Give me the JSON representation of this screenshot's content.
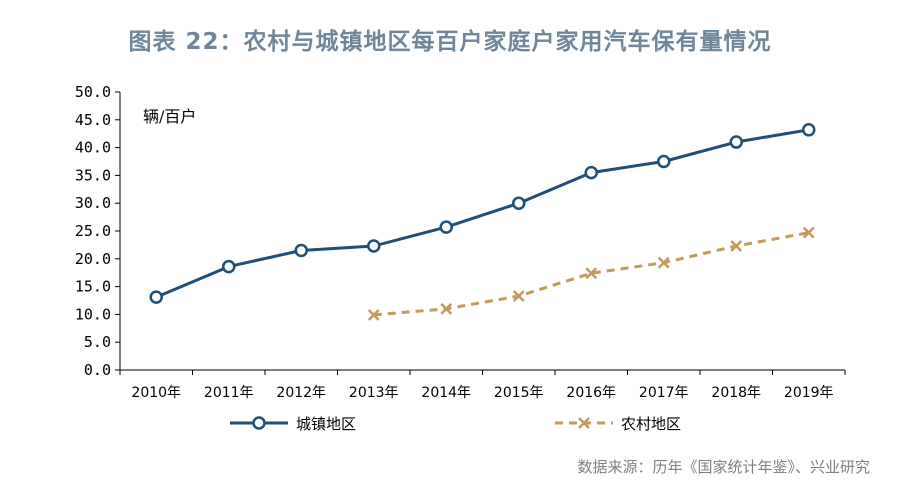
{
  "title": "图表 22：农村与城镇地区每百户家庭户家用汽车保有量情况",
  "source": "数据来源：历年《国家统计年鉴》、兴业研究",
  "chart_data": {
    "type": "line",
    "title": "图表 22：农村与城镇地区每百户家庭户家用汽车保有量情况",
    "unit_label": "辆/百户",
    "x": [
      "2010年",
      "2011年",
      "2012年",
      "2013年",
      "2014年",
      "2015年",
      "2016年",
      "2017年",
      "2018年",
      "2019年"
    ],
    "ylim": [
      0,
      50
    ],
    "y_ticks": [
      "0.0",
      "5.0",
      "10.0",
      "15.0",
      "20.0",
      "25.0",
      "30.0",
      "35.0",
      "40.0",
      "45.0",
      "50.0"
    ],
    "grid": false,
    "legend_position": "bottom",
    "series": [
      {
        "name": "城镇地区",
        "color": "#1f4e79",
        "marker": "circle",
        "style": "solid",
        "values": [
          13.1,
          18.6,
          21.5,
          22.3,
          25.7,
          30.0,
          35.5,
          37.5,
          41.0,
          43.2
        ]
      },
      {
        "name": "农村地区",
        "color": "#c49a5a",
        "marker": "x",
        "style": "dashed",
        "values": [
          null,
          null,
          null,
          9.9,
          11.0,
          13.3,
          17.4,
          19.3,
          22.3,
          24.7
        ]
      }
    ]
  }
}
